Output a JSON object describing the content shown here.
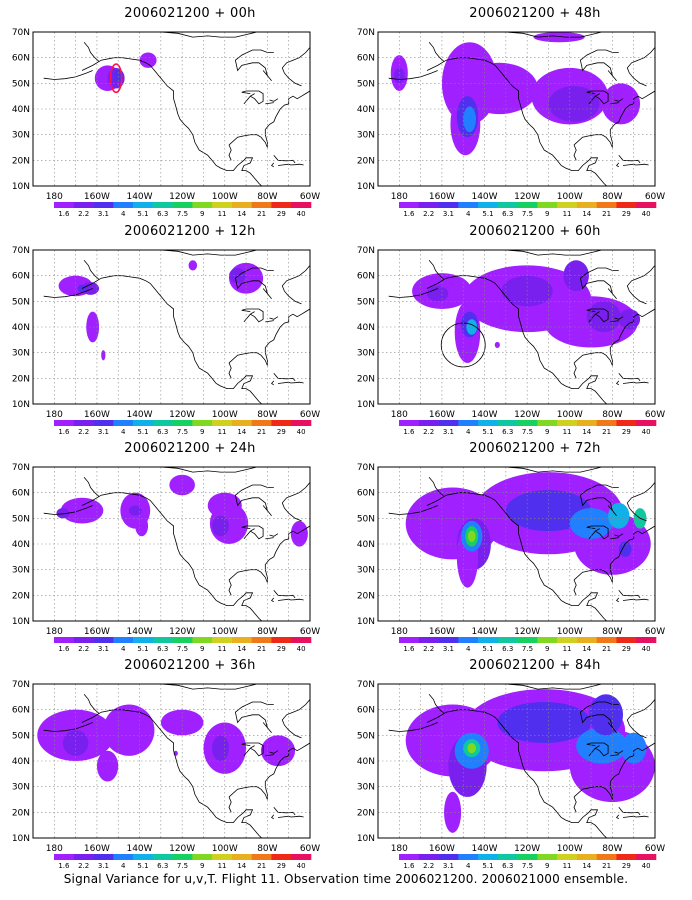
{
  "panels": [
    {
      "id": "p00",
      "title": "2006021200 + 00h"
    },
    {
      "id": "p48",
      "title": "2006021200 + 48h"
    },
    {
      "id": "p12",
      "title": "2006021200 + 12h"
    },
    {
      "id": "p60",
      "title": "2006021200 + 60h"
    },
    {
      "id": "p24",
      "title": "2006021200 + 24h"
    },
    {
      "id": "p72",
      "title": "2006021200 + 72h"
    },
    {
      "id": "p36",
      "title": "2006021200 + 36h"
    },
    {
      "id": "p84",
      "title": "2006021200 + 84h"
    }
  ],
  "axes": {
    "lat_labels": [
      "10N",
      "20N",
      "30N",
      "40N",
      "50N",
      "60N",
      "70N"
    ],
    "lon_labels": [
      "180",
      "160W",
      "140W",
      "120W",
      "100W",
      "80W",
      "60W"
    ]
  },
  "colorbar": {
    "labels": [
      "1.6",
      "2.2",
      "3.1",
      "4",
      "5.1",
      "6.3",
      "7.5",
      "9",
      "11",
      "14",
      "21",
      "29",
      "40"
    ],
    "colors": [
      "#a020ff",
      "#7a20ee",
      "#5030ee",
      "#2080ff",
      "#10b0e8",
      "#10c8a0",
      "#18d060",
      "#80d820",
      "#d0d020",
      "#e8b020",
      "#f07818",
      "#f02818",
      "#e81060"
    ]
  },
  "caption": "Signal Variance for u,v,T. Flight 11. Observation time 2006021200. 2006021000 ensemble."
}
